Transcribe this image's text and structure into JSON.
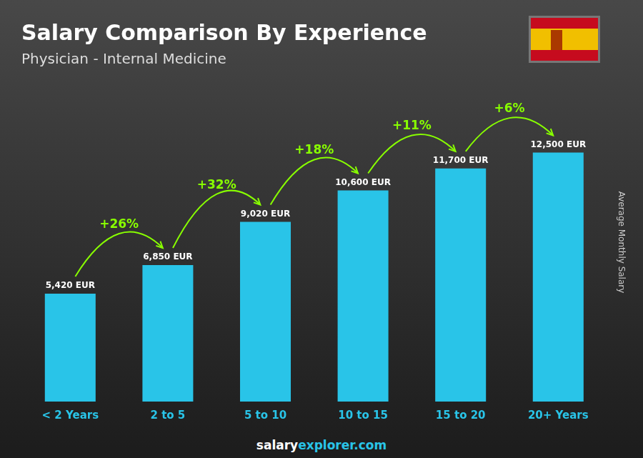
{
  "chart_data": {
    "type": "bar",
    "title": "Salary Comparison By Experience",
    "subtitle": "Physician - Internal Medicine",
    "ylabel": "Average Monthly Salary",
    "categories": [
      "< 2 Years",
      "2 to 5",
      "5 to 10",
      "10 to 15",
      "15 to 20",
      "20+ Years"
    ],
    "values": [
      5420,
      6850,
      9020,
      10600,
      11700,
      12500
    ],
    "value_labels": [
      "5,420 EUR",
      "6,850 EUR",
      "9,020 EUR",
      "10,600 EUR",
      "11,700 EUR",
      "12,500 EUR"
    ],
    "data_labels": true,
    "color": "#29C4E8",
    "ylim": [
      0,
      16000
    ],
    "grid": false,
    "tick_labels": "x",
    "annotations": [
      {
        "text": "+26%",
        "from": "< 2 Years",
        "to": "2 to 5"
      },
      {
        "text": "+32%",
        "from": "2 to 5",
        "to": "5 to 10"
      },
      {
        "text": "+18%",
        "from": "5 to 10",
        "to": "10 to 15"
      },
      {
        "text": "+11%",
        "from": "10 to 15",
        "to": "15 to 20"
      },
      {
        "text": "+6%",
        "from": "15 to 20",
        "to": "20+ Years"
      }
    ],
    "footer": [
      "salary",
      "explorer.com"
    ]
  }
}
